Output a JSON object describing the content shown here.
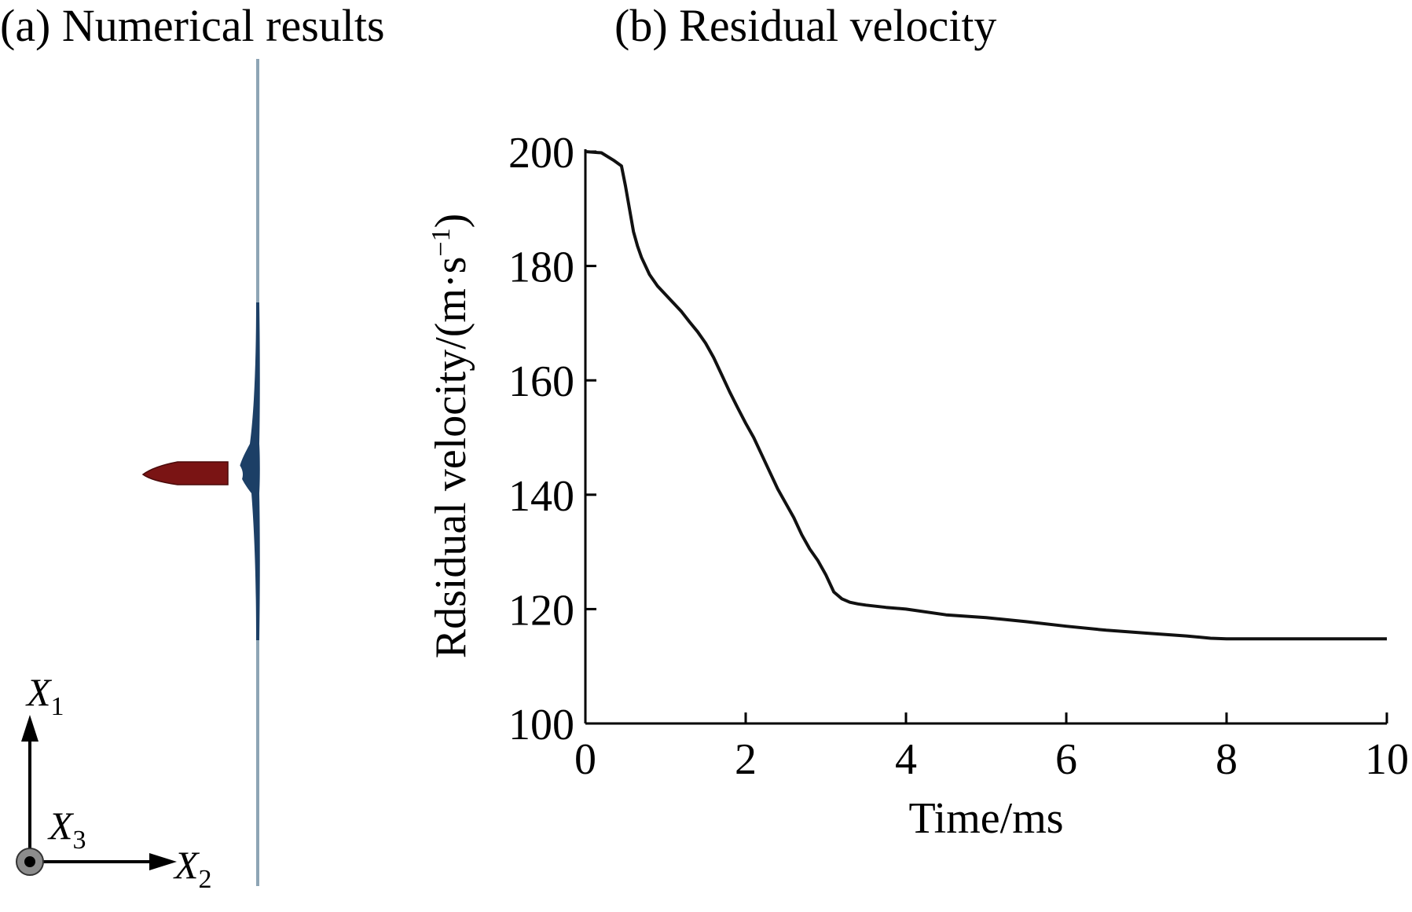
{
  "panel_a": {
    "title": "(a) Numerical results",
    "colors": {
      "projectile": "#7a1414",
      "plate": "#8ea5b5",
      "bulge": "#1c3f66"
    },
    "axes": [
      {
        "letter": "X",
        "sub": "1",
        "icon": "arrow-up-icon"
      },
      {
        "letter": "X",
        "sub": "2",
        "icon": "arrow-right-icon"
      },
      {
        "letter": "X",
        "sub": "3",
        "icon": "out-of-plane-dot-icon"
      }
    ]
  },
  "chart_data": {
    "type": "line",
    "title": "(b) Residual velocity",
    "xlabel": "Time/ms",
    "ylabel": "Rdsidual velocity/(m·s",
    "ylabel_sup": "−1",
    "ylabel_close": ")",
    "xlim": [
      0,
      10
    ],
    "ylim": [
      100,
      200
    ],
    "xticks": [
      "0",
      "2",
      "4",
      "6",
      "8",
      "10"
    ],
    "yticks": [
      "100",
      "120",
      "140",
      "160",
      "180",
      "200"
    ],
    "grid": false,
    "line_color": "#111111",
    "series": [
      {
        "x": [
          0,
          0.2,
          0.35,
          0.45,
          0.5,
          0.55,
          0.6,
          0.65,
          0.7,
          0.8,
          0.9,
          1.0,
          1.1,
          1.2,
          1.3,
          1.4,
          1.5,
          1.6,
          1.7,
          1.8,
          1.9,
          2.0,
          2.1,
          2.2,
          2.3,
          2.4,
          2.5,
          2.6,
          2.7,
          2.8,
          2.9,
          3.0,
          3.1,
          3.2,
          3.3,
          3.4,
          3.5,
          3.75,
          4.0,
          4.5,
          5.0,
          5.5,
          6.0,
          6.5,
          7.0,
          7.5,
          7.8,
          8.0,
          9.0,
          10.0
        ],
        "y": [
          200,
          199.8,
          198.5,
          197.5,
          194,
          190,
          186,
          183.5,
          181.5,
          178.5,
          176.5,
          175,
          173.5,
          172,
          170.2,
          168.5,
          166.5,
          164,
          161,
          158,
          155.2,
          152.5,
          150,
          147,
          144,
          141,
          138.5,
          136,
          133,
          130.5,
          128.5,
          126,
          123,
          121.8,
          121.2,
          120.9,
          120.7,
          120.3,
          120,
          119,
          118.5,
          117.8,
          117,
          116.3,
          115.8,
          115.3,
          114.9,
          114.8,
          114.8,
          114.8
        ]
      }
    ]
  }
}
